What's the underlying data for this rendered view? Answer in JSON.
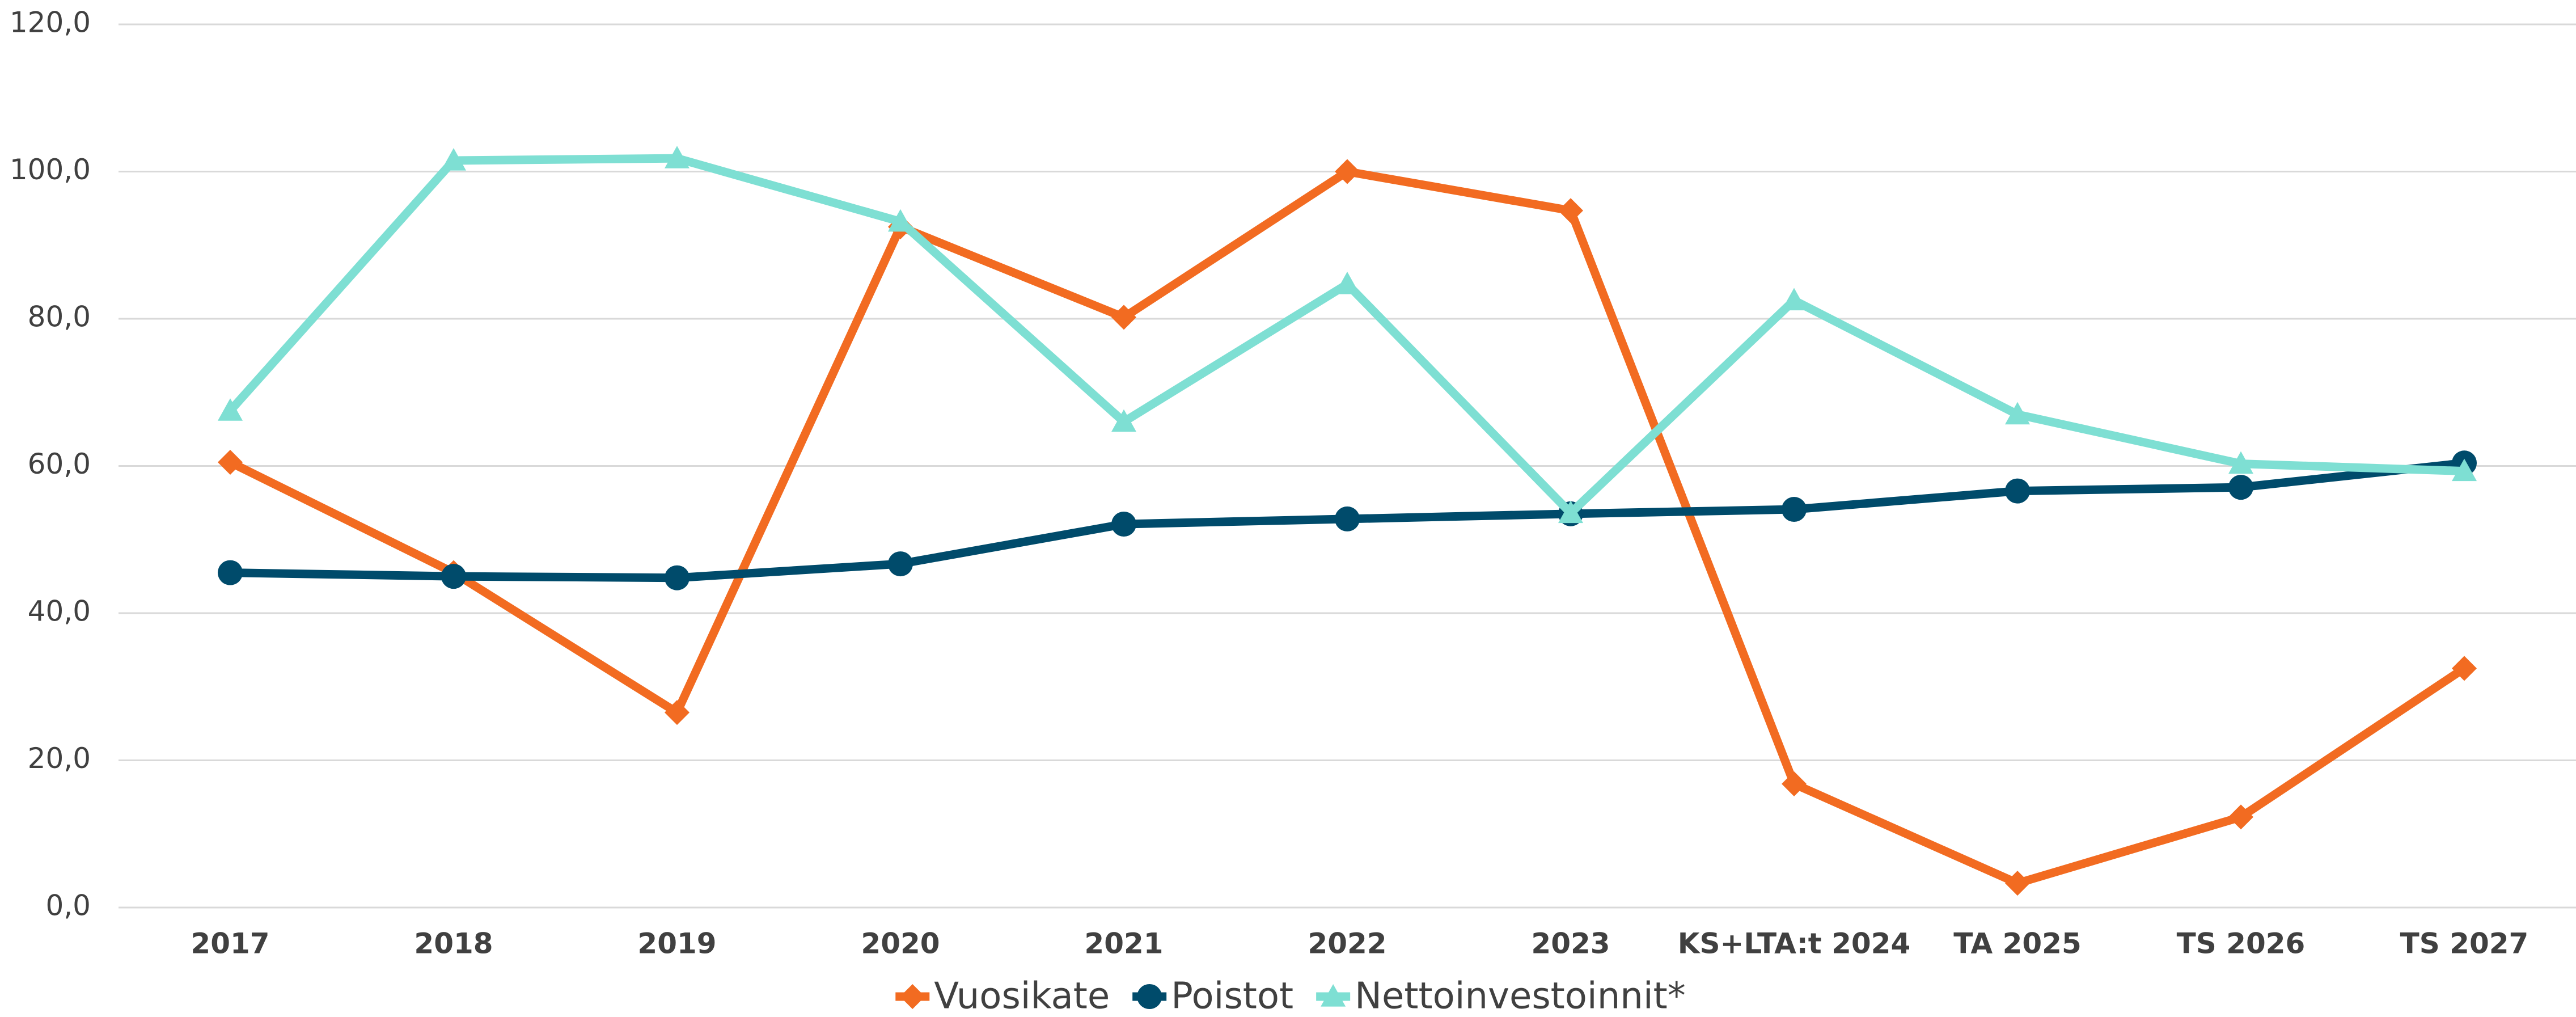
{
  "chart_data": {
    "type": "line",
    "categories": [
      "2017",
      "2018",
      "2019",
      "2020",
      "2021",
      "2022",
      "2023",
      "KS+LTA:t 2024",
      "TA 2025",
      "TS 2026",
      "TS 2027"
    ],
    "series": [
      {
        "name": "Vuosikate",
        "color": "#F26B21",
        "marker": "diamond",
        "values": [
          60.5,
          45.5,
          26.5,
          92.5,
          80.2,
          100.0,
          94.7,
          16.8,
          3.3,
          12.3,
          32.5
        ]
      },
      {
        "name": "Poistot",
        "color": "#004B6B",
        "marker": "circle",
        "values": [
          45.5,
          45.0,
          44.8,
          46.7,
          52.1,
          52.8,
          53.5,
          54.1,
          56.6,
          57.1,
          60.4
        ]
      },
      {
        "name": "Nettoinvestoinnit*",
        "color": "#7EDFD3",
        "marker": "triangle",
        "values": [
          67.5,
          101.5,
          101.8,
          93.2,
          66.0,
          84.7,
          53.6,
          82.5,
          67.0,
          60.3,
          59.3
        ]
      }
    ],
    "ylim": [
      0,
      120
    ],
    "yticks": [
      {
        "value": 0,
        "label": "0,0"
      },
      {
        "value": 20,
        "label": "20,0"
      },
      {
        "value": 40,
        "label": "40,0"
      },
      {
        "value": 60,
        "label": "60,0"
      },
      {
        "value": 80,
        "label": "80,0"
      },
      {
        "value": 100,
        "label": "100,0"
      },
      {
        "value": 120,
        "label": "120,0"
      }
    ],
    "grid": true,
    "legend": "bottom"
  }
}
